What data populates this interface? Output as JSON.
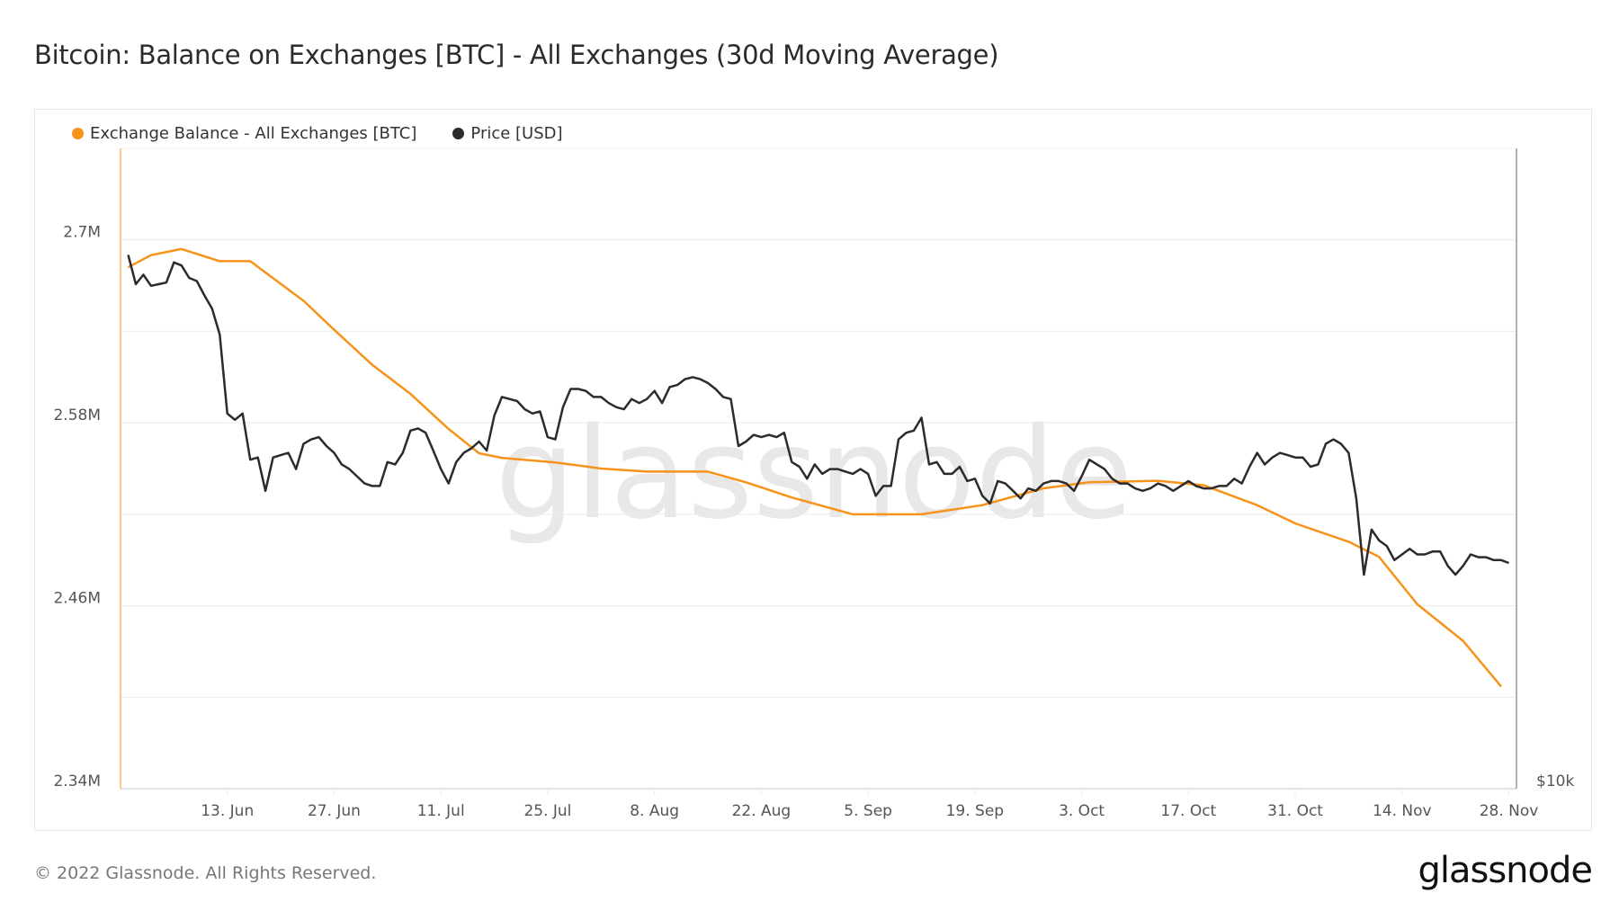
{
  "title": "Bitcoin: Balance on Exchanges [BTC] - All Exchanges (30d Moving Average)",
  "footer": "© 2022 Glassnode. All Rights Reserved.",
  "logo": "glassnode",
  "watermark": "glassnode",
  "colors": {
    "balance": "#f7931a",
    "price": "#2b2b2b",
    "grid": "#ececec",
    "axis": "#c8c8c8"
  },
  "chart_data": {
    "type": "line",
    "title": "Bitcoin: Balance on Exchanges [BTC] - All Exchanges (30d Moving Average)",
    "legend": {
      "placement": "top-left",
      "entries": [
        "Exchange Balance - All Exchanges [BTC]",
        "Price [USD]"
      ]
    },
    "grid": true,
    "xlim": [
      "2022-05-30",
      "2022-11-29"
    ],
    "x_ticks": [
      {
        "date": "2022-06-13",
        "label": "13. Jun"
      },
      {
        "date": "2022-06-27",
        "label": "27. Jun"
      },
      {
        "date": "2022-07-11",
        "label": "11. Jul"
      },
      {
        "date": "2022-07-25",
        "label": "25. Jul"
      },
      {
        "date": "2022-08-08",
        "label": "8. Aug"
      },
      {
        "date": "2022-08-22",
        "label": "22. Aug"
      },
      {
        "date": "2022-09-05",
        "label": "5. Sep"
      },
      {
        "date": "2022-09-19",
        "label": "19. Sep"
      },
      {
        "date": "2022-10-03",
        "label": "3. Oct"
      },
      {
        "date": "2022-10-17",
        "label": "17. Oct"
      },
      {
        "date": "2022-10-31",
        "label": "31. Oct"
      },
      {
        "date": "2022-11-14",
        "label": "14. Nov"
      },
      {
        "date": "2022-11-28",
        "label": "28. Nov"
      }
    ],
    "y_left": {
      "ylim": [
        2340000,
        2760000
      ],
      "ticks": [
        {
          "value": 2700000,
          "label": "2.7M"
        },
        {
          "value": 2580000,
          "label": "2.58M"
        },
        {
          "value": 2460000,
          "label": "2.46M"
        },
        {
          "value": 2340000,
          "label": "2.34M"
        }
      ],
      "gridlines": [
        2340000,
        2400000,
        2460000,
        2520000,
        2580000,
        2640000,
        2700000
      ]
    },
    "y_right": {
      "scale": "log",
      "ylim": [
        10000,
        39300
      ],
      "ticks": [
        {
          "value": 10000,
          "label": "$10k"
        }
      ]
    },
    "series": [
      {
        "name": "Exchange Balance - All Exchanges [BTC]",
        "axis": "left",
        "color": "#f7931a",
        "points": [
          [
            "2022-05-31",
            2682000
          ],
          [
            "2022-06-03",
            2690000
          ],
          [
            "2022-06-07",
            2694000
          ],
          [
            "2022-06-12",
            2686000
          ],
          [
            "2022-06-16",
            2686000
          ],
          [
            "2022-06-23",
            2660000
          ],
          [
            "2022-06-27",
            2641000
          ],
          [
            "2022-07-02",
            2618000
          ],
          [
            "2022-07-07",
            2599000
          ],
          [
            "2022-07-12",
            2576000
          ],
          [
            "2022-07-16",
            2560000
          ],
          [
            "2022-07-19",
            2557000
          ],
          [
            "2022-07-26",
            2554000
          ],
          [
            "2022-08-01",
            2550000
          ],
          [
            "2022-08-07",
            2548000
          ],
          [
            "2022-08-15",
            2548000
          ],
          [
            "2022-08-20",
            2541000
          ],
          [
            "2022-08-26",
            2531000
          ],
          [
            "2022-09-03",
            2520000
          ],
          [
            "2022-09-12",
            2520000
          ],
          [
            "2022-09-20",
            2526000
          ],
          [
            "2022-09-28",
            2537000
          ],
          [
            "2022-10-04",
            2541000
          ],
          [
            "2022-10-13",
            2542000
          ],
          [
            "2022-10-19",
            2539000
          ],
          [
            "2022-10-26",
            2526000
          ],
          [
            "2022-10-31",
            2514000
          ],
          [
            "2022-11-07",
            2502000
          ],
          [
            "2022-11-11",
            2492000
          ],
          [
            "2022-11-16",
            2461000
          ],
          [
            "2022-11-22",
            2437000
          ],
          [
            "2022-11-27",
            2407000
          ]
        ]
      },
      {
        "name": "Price [USD]",
        "axis": "right",
        "color": "#2b2b2b",
        "dates": [
          "2022-05-31",
          "2022-06-01",
          "2022-06-02",
          "2022-06-03",
          "2022-06-04",
          "2022-06-05",
          "2022-06-06",
          "2022-06-07",
          "2022-06-08",
          "2022-06-09",
          "2022-06-10",
          "2022-06-11",
          "2022-06-12",
          "2022-06-13",
          "2022-06-14",
          "2022-06-15",
          "2022-06-16",
          "2022-06-17",
          "2022-06-18",
          "2022-06-19",
          "2022-06-20",
          "2022-06-21",
          "2022-06-22",
          "2022-06-23",
          "2022-06-24",
          "2022-06-25",
          "2022-06-26",
          "2022-06-27",
          "2022-06-28",
          "2022-06-29",
          "2022-06-30",
          "2022-07-01",
          "2022-07-02",
          "2022-07-03",
          "2022-07-04",
          "2022-07-05",
          "2022-07-06",
          "2022-07-07",
          "2022-07-08",
          "2022-07-09",
          "2022-07-10",
          "2022-07-11",
          "2022-07-12",
          "2022-07-13",
          "2022-07-14",
          "2022-07-15",
          "2022-07-16",
          "2022-07-17",
          "2022-07-18",
          "2022-07-19",
          "2022-07-20",
          "2022-07-21",
          "2022-07-22",
          "2022-07-23",
          "2022-07-24",
          "2022-07-25",
          "2022-07-26",
          "2022-07-27",
          "2022-07-28",
          "2022-07-29",
          "2022-07-30",
          "2022-07-31",
          "2022-08-01",
          "2022-08-02",
          "2022-08-03",
          "2022-08-04",
          "2022-08-05",
          "2022-08-06",
          "2022-08-07",
          "2022-08-08",
          "2022-08-09",
          "2022-08-10",
          "2022-08-11",
          "2022-08-12",
          "2022-08-13",
          "2022-08-14",
          "2022-08-15",
          "2022-08-16",
          "2022-08-17",
          "2022-08-18",
          "2022-08-19",
          "2022-08-20",
          "2022-08-21",
          "2022-08-22",
          "2022-08-23",
          "2022-08-24",
          "2022-08-25",
          "2022-08-26",
          "2022-08-27",
          "2022-08-28",
          "2022-08-29",
          "2022-08-30",
          "2022-08-31",
          "2022-09-01",
          "2022-09-02",
          "2022-09-03",
          "2022-09-04",
          "2022-09-05",
          "2022-09-06",
          "2022-09-07",
          "2022-09-08",
          "2022-09-09",
          "2022-09-10",
          "2022-09-11",
          "2022-09-12",
          "2022-09-13",
          "2022-09-14",
          "2022-09-15",
          "2022-09-16",
          "2022-09-17",
          "2022-09-18",
          "2022-09-19",
          "2022-09-20",
          "2022-09-21",
          "2022-09-22",
          "2022-09-23",
          "2022-09-24",
          "2022-09-25",
          "2022-09-26",
          "2022-09-27",
          "2022-09-28",
          "2022-09-29",
          "2022-09-30",
          "2022-10-01",
          "2022-10-02",
          "2022-10-03",
          "2022-10-04",
          "2022-10-05",
          "2022-10-06",
          "2022-10-07",
          "2022-10-08",
          "2022-10-09",
          "2022-10-10",
          "2022-10-11",
          "2022-10-12",
          "2022-10-13",
          "2022-10-14",
          "2022-10-15",
          "2022-10-16",
          "2022-10-17",
          "2022-10-18",
          "2022-10-19",
          "2022-10-20",
          "2022-10-21",
          "2022-10-22",
          "2022-10-23",
          "2022-10-24",
          "2022-10-25",
          "2022-10-26",
          "2022-10-27",
          "2022-10-28",
          "2022-10-29",
          "2022-10-30",
          "2022-10-31",
          "2022-11-01",
          "2022-11-02",
          "2022-11-03",
          "2022-11-04",
          "2022-11-05",
          "2022-11-06",
          "2022-11-07",
          "2022-11-08",
          "2022-11-09",
          "2022-11-10",
          "2022-11-11",
          "2022-11-12",
          "2022-11-13",
          "2022-11-14",
          "2022-11-15",
          "2022-11-16",
          "2022-11-17",
          "2022-11-18",
          "2022-11-19",
          "2022-11-20",
          "2022-11-21",
          "2022-11-22",
          "2022-11-23",
          "2022-11-24",
          "2022-11-25",
          "2022-11-26",
          "2022-11-27",
          "2022-11-28"
        ],
        "values": [
          31300,
          29400,
          30000,
          29300,
          29400,
          29500,
          30800,
          30600,
          29800,
          29600,
          28700,
          27900,
          26400,
          22300,
          22000,
          22300,
          20200,
          20300,
          18900,
          20300,
          20400,
          20500,
          19800,
          20900,
          21100,
          21200,
          20800,
          20500,
          20000,
          19800,
          19500,
          19200,
          19100,
          19100,
          20100,
          20000,
          20500,
          21500,
          21600,
          21400,
          20600,
          19800,
          19200,
          20100,
          20500,
          20700,
          21000,
          20600,
          22200,
          23100,
          23000,
          22900,
          22500,
          22300,
          22400,
          21200,
          21100,
          22600,
          23500,
          23500,
          23400,
          23100,
          23100,
          22800,
          22600,
          22500,
          23000,
          22800,
          23000,
          23400,
          22800,
          23600,
          23700,
          24000,
          24100,
          24000,
          23800,
          23500,
          23100,
          23000,
          20800,
          21000,
          21300,
          21200,
          21300,
          21200,
          21400,
          20100,
          19900,
          19400,
          20000,
          19600,
          19800,
          19800,
          19700,
          19600,
          19800,
          19600,
          18700,
          19100,
          19100,
          21100,
          21400,
          21500,
          22100,
          20000,
          20100,
          19600,
          19600,
          19900,
          19300,
          19400,
          18700,
          18400,
          19300,
          19200,
          18900,
          18600,
          19000,
          18900,
          19200,
          19300,
          19300,
          19200,
          18900,
          19500,
          20200,
          20000,
          19800,
          19400,
          19200,
          19200,
          19000,
          18900,
          19000,
          19200,
          19100,
          18900,
          19100,
          19300,
          19100,
          19000,
          19000,
          19100,
          19100,
          19400,
          19200,
          19900,
          20500,
          20000,
          20300,
          20500,
          20400,
          20300,
          20300,
          19900,
          20000,
          20900,
          21100,
          20900,
          20500,
          18600,
          15800,
          17400,
          17000,
          16800,
          16300,
          16500,
          16700,
          16500,
          16500,
          16600,
          16600,
          16100,
          15800,
          16100,
          16500,
          16400,
          16400,
          16300,
          16300,
          16200
        ]
      }
    ]
  }
}
